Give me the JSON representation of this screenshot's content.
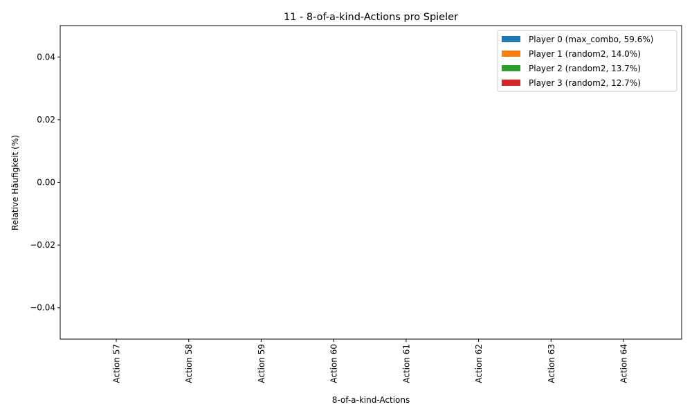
{
  "chart_data": {
    "type": "bar",
    "title": "11 - 8-of-a-kind-Actions pro Spieler",
    "xlabel": "8-of-a-kind-Actions",
    "ylabel": "Relative Häufigkeit (%)",
    "categories": [
      "Action 57",
      "Action 58",
      "Action 59",
      "Action 60",
      "Action 61",
      "Action 62",
      "Action 63",
      "Action 64"
    ],
    "ylim": [
      -0.05,
      0.05
    ],
    "yticks": [
      -0.04,
      -0.02,
      0.0,
      0.02,
      0.04
    ],
    "ytick_labels": [
      "−0.04",
      "−0.02",
      "0.00",
      "0.02",
      "0.04"
    ],
    "grid": false,
    "legend_position": "top-right",
    "series": [
      {
        "name": "Player 0 (max_combo, 59.6%)",
        "color": "#1f77b4",
        "values": [
          0,
          0,
          0,
          0,
          0,
          0,
          0,
          0
        ]
      },
      {
        "name": "Player 1 (random2, 14.0%)",
        "color": "#ff7f0e",
        "values": [
          0,
          0,
          0,
          0,
          0,
          0,
          0,
          0
        ]
      },
      {
        "name": "Player 2 (random2, 13.7%)",
        "color": "#2ca02c",
        "values": [
          0,
          0,
          0,
          0,
          0,
          0,
          0,
          0
        ]
      },
      {
        "name": "Player 3 (random2, 12.7%)",
        "color": "#d62728",
        "values": [
          0,
          0,
          0,
          0,
          0,
          0,
          0,
          0
        ]
      }
    ]
  }
}
